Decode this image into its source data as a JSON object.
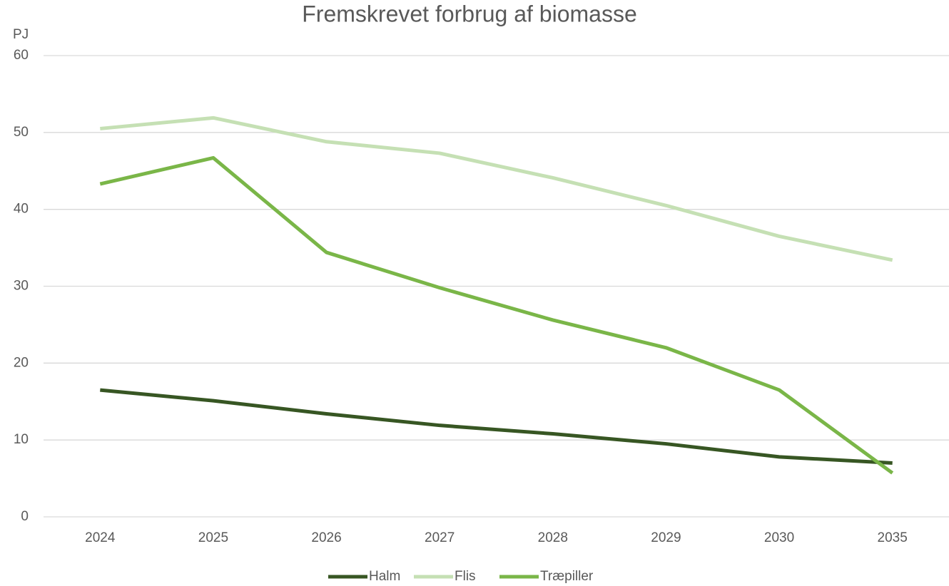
{
  "chart_data": {
    "type": "line",
    "title": "Fremskrevet forbrug af biomasse",
    "y_label": "PJ",
    "categories": [
      "2024",
      "2025",
      "2026",
      "2027",
      "2028",
      "2029",
      "2030",
      "2035"
    ],
    "series": [
      {
        "name": "Halm",
        "color": "#375623",
        "values": [
          16.5,
          15.1,
          13.4,
          11.9,
          10.8,
          9.5,
          7.8,
          7.0
        ]
      },
      {
        "name": "Flis",
        "color": "#c5e0b4",
        "values": [
          50.5,
          51.9,
          48.8,
          47.3,
          44.1,
          40.5,
          36.5,
          33.4
        ]
      },
      {
        "name": "Træpiller",
        "color": "#7ab648",
        "values": [
          43.3,
          46.7,
          34.4,
          29.8,
          25.6,
          22.0,
          16.5,
          5.7
        ]
      }
    ],
    "ylim": [
      0,
      60
    ],
    "yticks": [
      0,
      10,
      20,
      30,
      40,
      50,
      60
    ],
    "grid": true,
    "legend": "bottom"
  }
}
